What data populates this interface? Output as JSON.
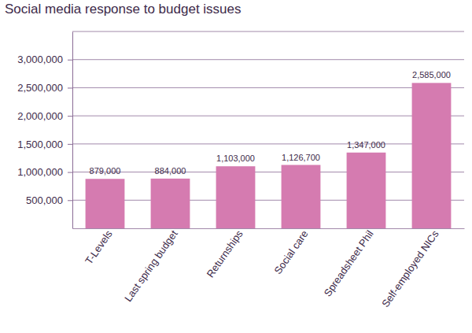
{
  "chart_data": {
    "type": "bar",
    "title": "Social media response to budget issues",
    "categories": [
      "T-Levels",
      "Last spring budget",
      "Returnships",
      "Social care",
      "Spreadsheet Phil",
      "Self-employed NICs"
    ],
    "values": [
      879000,
      884000,
      1103000,
      1126700,
      1347000,
      2585000
    ],
    "value_labels": [
      "879,000",
      "884,000",
      "1,103,000",
      "1,126,700",
      "1,347,000",
      "2,585,000"
    ],
    "data_labels": true,
    "color": "#d57bb0",
    "ylim": [
      0,
      3500000
    ],
    "yticks": [
      {
        "value": 500000,
        "label": "500,000"
      },
      {
        "value": 1000000,
        "label": "1,000,000"
      },
      {
        "value": 1500000,
        "label": "1,500,000"
      },
      {
        "value": 2000000,
        "label": "2,000,000"
      },
      {
        "value": 2500000,
        "label": "2,500,000"
      },
      {
        "value": 3000000,
        "label": "3,000,000"
      }
    ],
    "grid": true
  }
}
